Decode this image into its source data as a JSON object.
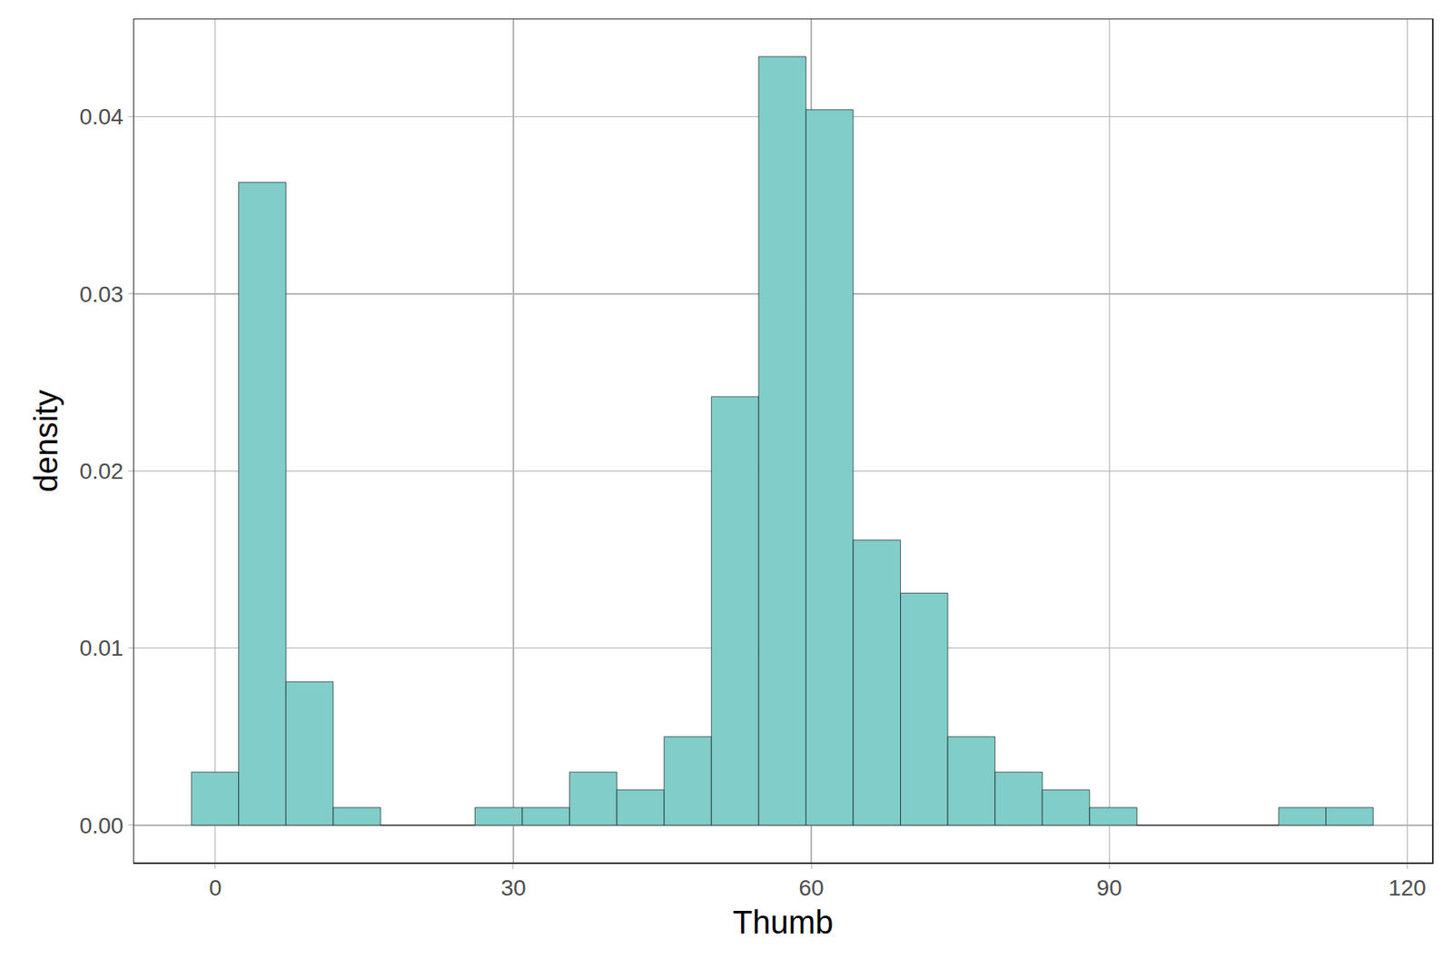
{
  "chart_data": {
    "type": "histogram",
    "x_label": "Thumb",
    "y_label": "density",
    "bins": [
      -2.42,
      2.34,
      7.1,
      11.86,
      16.62,
      21.38,
      26.14,
      30.9,
      35.66,
      40.42,
      45.18,
      49.94,
      54.7,
      59.46,
      64.22,
      68.98,
      73.74,
      78.5,
      83.26,
      88.02,
      92.78,
      97.54,
      102.3,
      107.06,
      111.82,
      116.58
    ],
    "values": [
      0.003,
      0.0363,
      0.0081,
      0.001,
      0,
      0,
      0.001,
      0.001,
      0.003,
      0.002,
      0.005,
      0.0242,
      0.0434,
      0.0404,
      0.0161,
      0.0131,
      0.005,
      0.003,
      0.002,
      0.001,
      0,
      0,
      0,
      0.001,
      0.001
    ],
    "color": "#80cdc9",
    "xlim": [
      -8.2,
      122.5
    ],
    "ylim": [
      -0.0021,
      0.0455
    ],
    "xticks": [
      0,
      30,
      60,
      90,
      120
    ],
    "yticks": [
      {
        "value": 0,
        "label": "0.00"
      },
      0.01,
      0.02,
      0.03,
      0.04
    ],
    "grid": true
  }
}
